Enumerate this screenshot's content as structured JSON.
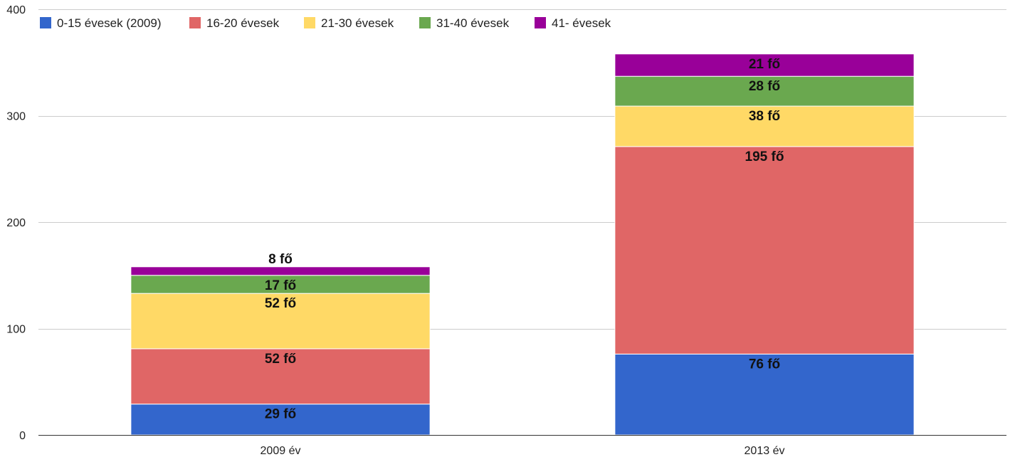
{
  "chart_data": {
    "type": "bar",
    "stacked": true,
    "title": "",
    "xlabel": "",
    "ylabel": "",
    "categories": [
      "2009 év",
      "2013 év"
    ],
    "ylim": [
      0,
      400
    ],
    "yticks": [
      0,
      100,
      200,
      300,
      400
    ],
    "grid": true,
    "legend_position": "top-left",
    "series": [
      {
        "name": "0-15 évesek (2009)",
        "color": "#3366cc",
        "values": [
          29,
          76
        ],
        "labels": [
          "29 fő",
          "76 fő"
        ]
      },
      {
        "name": "16-20 évesek",
        "color": "#e06666",
        "values": [
          52,
          195
        ],
        "labels": [
          "52 fő",
          "195 fő"
        ]
      },
      {
        "name": "21-30 évesek",
        "color": "#ffd966",
        "values": [
          52,
          38
        ],
        "labels": [
          "52 fő",
          "38 fő"
        ]
      },
      {
        "name": "31-40 évesek",
        "color": "#6aa84f",
        "values": [
          17,
          28
        ],
        "labels": [
          "17 fő",
          "28 fő"
        ]
      },
      {
        "name": "41- évesek",
        "color": "#990099",
        "values": [
          8,
          21
        ],
        "labels": [
          "8 fő",
          "21 fő"
        ]
      }
    ]
  }
}
